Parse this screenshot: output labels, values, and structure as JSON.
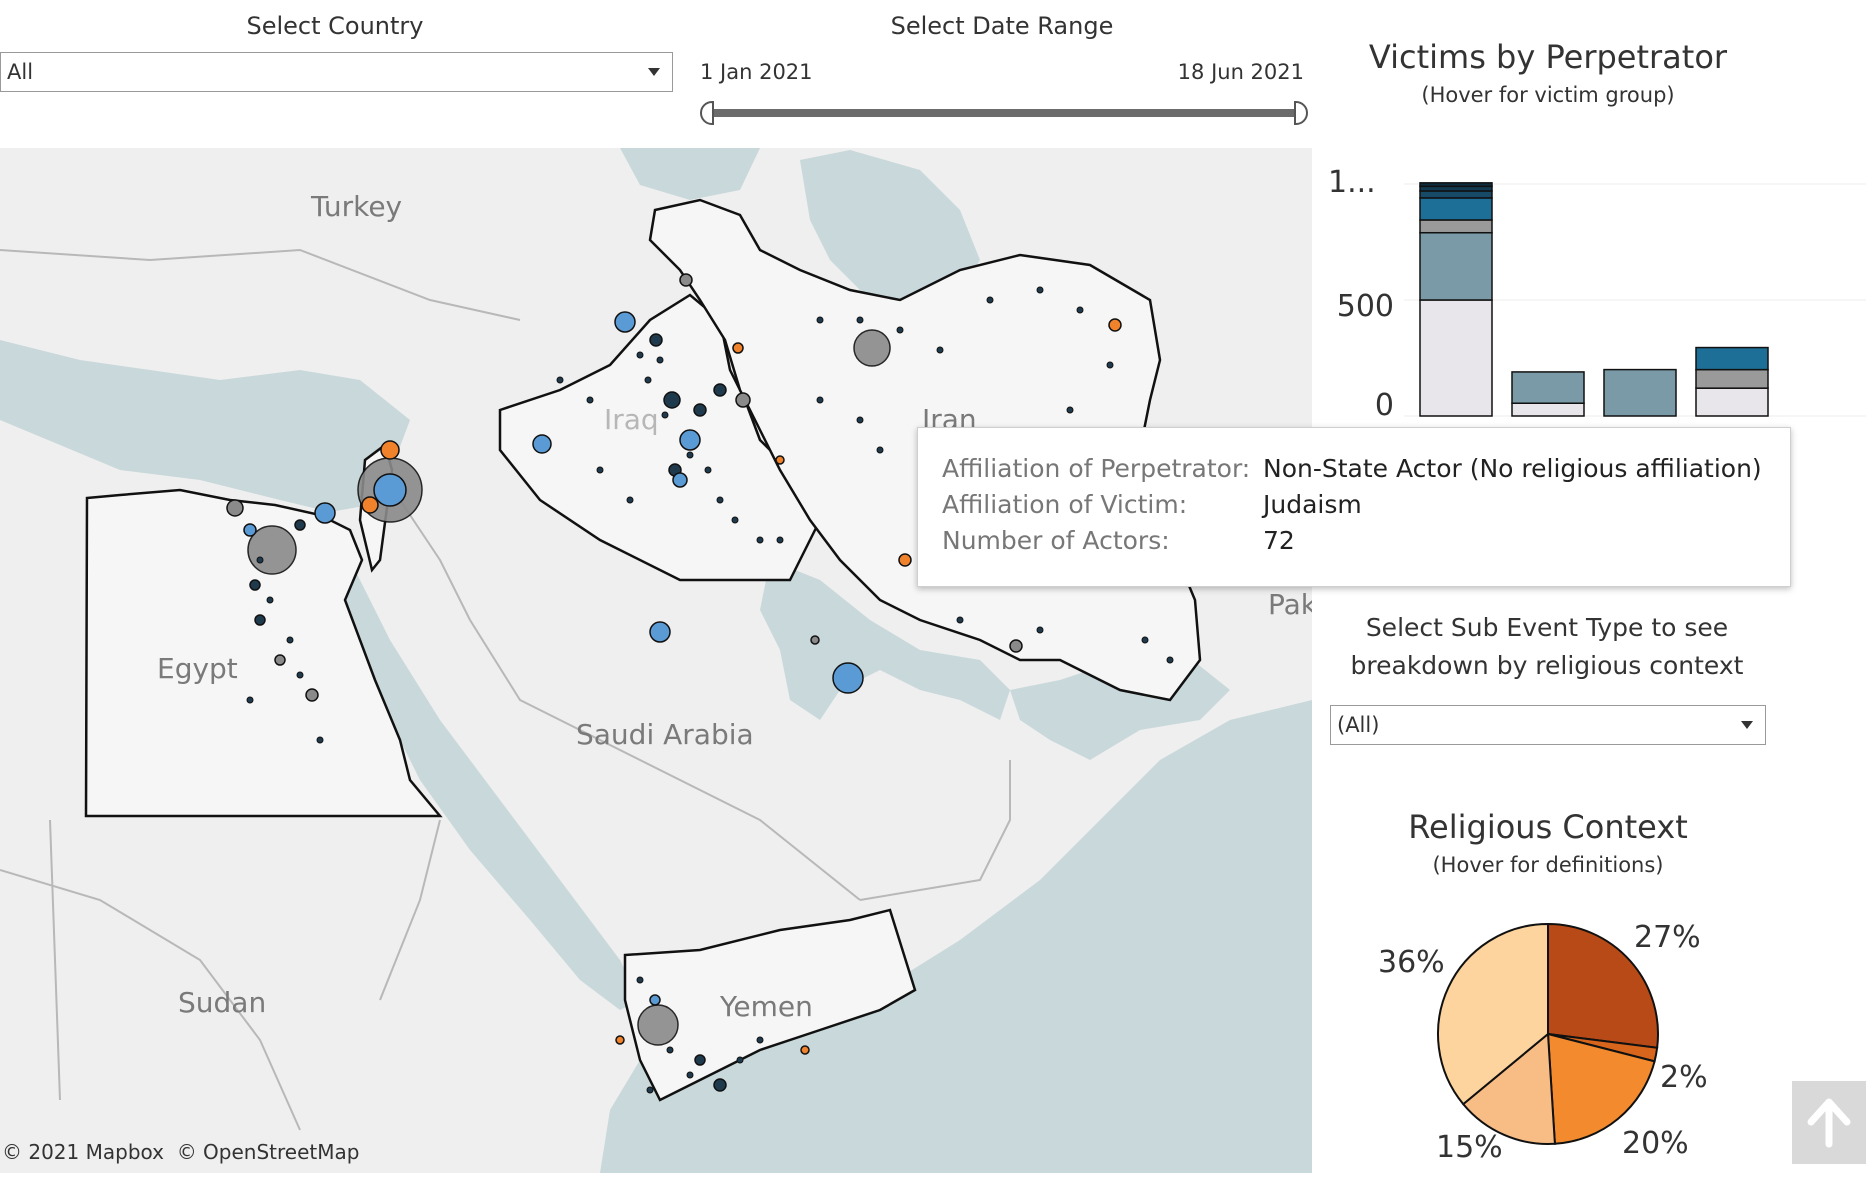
{
  "filters": {
    "country": {
      "title": "Select Country",
      "value": "All"
    },
    "date_range": {
      "title": "Select Date Range",
      "start": "1 Jan 2021",
      "end": "18 Jun 2021",
      "position": [
        0.0,
        1.0
      ]
    }
  },
  "map": {
    "labels": {
      "turkey": "Turkey",
      "iraq": "Iraq",
      "iran": "Iran",
      "egypt": "Egypt",
      "saudi": "Saudi Arabia",
      "sudan": "Sudan",
      "yemen": "Yemen",
      "pak": "Pak"
    },
    "attribution": "© 2021 Mapbox  © OpenStreetMap",
    "colors": {
      "land": "#efefef",
      "water": "#c9d8da",
      "border": "#1a1a1a",
      "marker_orange": "#f0822b",
      "marker_blue": "#5b9bd5",
      "marker_dark": "#1f3a4d",
      "marker_gray": "#8a8a8a"
    }
  },
  "victims_panel": {
    "title": "Victims by Perpetrator",
    "subtitle": "(Hover for victim group)",
    "y_ticks": [
      "1...",
      "500",
      "0"
    ]
  },
  "tooltip": {
    "rows": [
      {
        "key": "Affiliation of Perpetrator:",
        "value": "Non-State Actor (No religious affiliation)"
      },
      {
        "key": "Affiliation of Victim:",
        "value": "Judaism"
      },
      {
        "key": "Number of Actors:",
        "value": "72"
      }
    ]
  },
  "sub_event": {
    "title_line1": "Select Sub Event Type to see",
    "title_line2": "breakdown by religious context",
    "value": "(All)"
  },
  "religious_panel": {
    "title": "Religious Context",
    "subtitle": "(Hover for definitions)"
  },
  "chart_data": [
    {
      "type": "bar",
      "title": "Victims by Perpetrator",
      "ylim": [
        0,
        1000
      ],
      "y_ticks": [
        "1...",
        "500",
        "0"
      ],
      "stacked": true,
      "bars": [
        {
          "segments": [
            {
              "value": 500,
              "color": "#e8e6ea"
            },
            {
              "value": 290,
              "color": "#7b9aa8"
            },
            {
              "value": 55,
              "color": "#9a9a9a"
            },
            {
              "value": 95,
              "color": "#1d6f97"
            },
            {
              "value": 30,
              "color": "#174a66"
            },
            {
              "value": 20,
              "color": "#123a52"
            },
            {
              "value": 15,
              "color": "#0e2c3f"
            }
          ]
        },
        {
          "segments": [
            {
              "value": 55,
              "color": "#e8e6ea"
            },
            {
              "value": 135,
              "color": "#7b9aa8"
            }
          ]
        },
        {
          "segments": [
            {
              "value": 0,
              "color": "#e8e6ea"
            },
            {
              "value": 200,
              "color": "#7b9aa8"
            }
          ]
        },
        {
          "segments": [
            {
              "value": 120,
              "color": "#e8e6ea"
            },
            {
              "value": 80,
              "color": "#9a9a9a"
            },
            {
              "value": 95,
              "color": "#1d6f97"
            }
          ]
        }
      ]
    },
    {
      "type": "pie",
      "title": "Religious Context",
      "slices": [
        {
          "label": "27%",
          "value": 27,
          "color": "#b84a18"
        },
        {
          "label": "2%",
          "value": 2,
          "color": "#d8651c"
        },
        {
          "label": "20%",
          "value": 20,
          "color": "#f38a2e"
        },
        {
          "label": "15%",
          "value": 15,
          "color": "#f8bd85"
        },
        {
          "label": "36%",
          "value": 36,
          "color": "#fdd49e"
        }
      ]
    }
  ]
}
